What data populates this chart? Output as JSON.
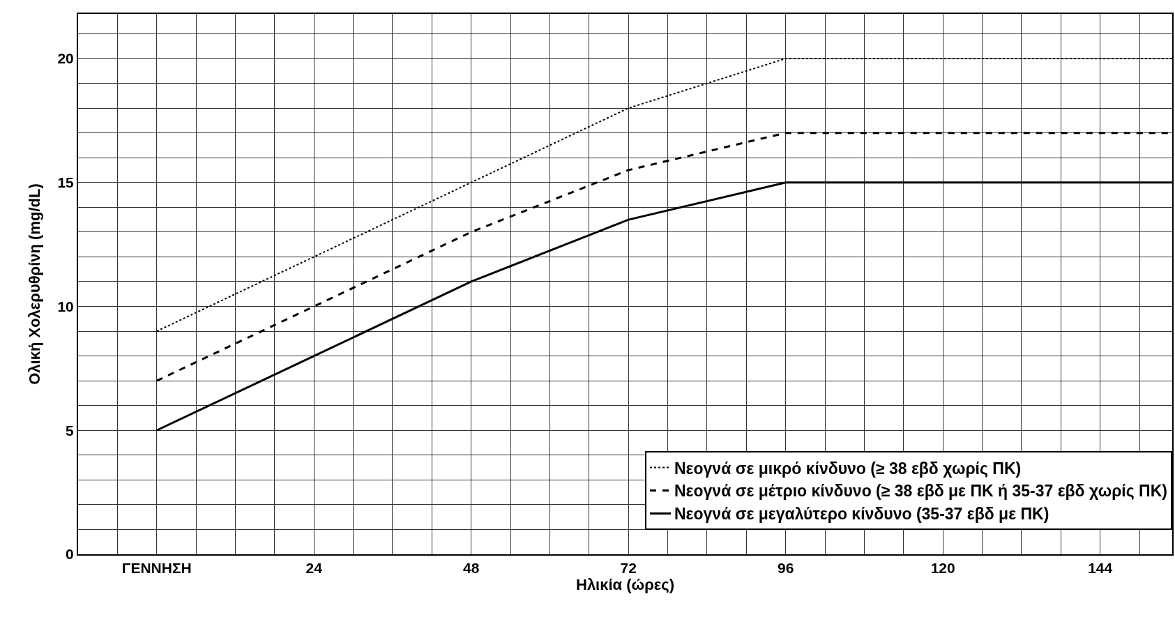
{
  "chart_data": {
    "type": "line",
    "xlabel": "Ηλικία (ώρες)",
    "ylabel": "Ολική Χολερυθρίνη (mg/dL)",
    "x": [
      0,
      24,
      48,
      72,
      96,
      155
    ],
    "series": [
      {
        "name": "Νεογνά σε μικρό κίνδυνο (≥ 38 εβδ χωρίς ΠΚ)",
        "color": "#000000",
        "line_style": "dotted",
        "values": [
          9,
          12,
          15,
          18,
          20,
          20
        ]
      },
      {
        "name": "Νεογνά σε μέτριο κίνδυνο (≥ 38 εβδ με ΠΚ ή 35-37 εβδ χωρίς ΠΚ)",
        "color": "#000000",
        "line_style": "dashed",
        "values": [
          7,
          10,
          13,
          15.5,
          17,
          17
        ]
      },
      {
        "name": "Νεογνά σε μεγαλύτερο κίνδυνο (35-37 εβδ με ΠΚ)",
        "color": "#000000",
        "line_style": "solid",
        "values": [
          5,
          8,
          11,
          13.5,
          15,
          15
        ]
      }
    ],
    "xlim": [
      -12,
      155
    ],
    "xticks": [
      {
        "value": -6,
        "label": null
      },
      {
        "value": 0,
        "label": "ΓΕΝΝΗΣΗ"
      },
      {
        "value": 6,
        "label": null
      },
      {
        "value": 12,
        "label": null
      },
      {
        "value": 18,
        "label": null
      },
      24,
      {
        "value": 30,
        "label": null
      },
      {
        "value": 36,
        "label": null
      },
      {
        "value": 42,
        "label": null
      },
      48,
      {
        "value": 54,
        "label": null
      },
      {
        "value": 60,
        "label": null
      },
      {
        "value": 66,
        "label": null
      },
      72,
      {
        "value": 78,
        "label": null
      },
      {
        "value": 84,
        "label": null
      },
      {
        "value": 90,
        "label": null
      },
      96,
      {
        "value": 102,
        "label": null
      },
      {
        "value": 108,
        "label": null
      },
      {
        "value": 114,
        "label": null
      },
      120,
      {
        "value": 126,
        "label": null
      },
      {
        "value": 132,
        "label": null
      },
      {
        "value": 138,
        "label": null
      },
      144,
      {
        "value": 150,
        "label": null
      }
    ],
    "ylim": [
      0,
      21.8
    ],
    "yticks": [
      0,
      {
        "value": 1,
        "label": null
      },
      {
        "value": 2,
        "label": null
      },
      {
        "value": 3,
        "label": null
      },
      {
        "value": 4,
        "label": null
      },
      5,
      {
        "value": 6,
        "label": null
      },
      {
        "value": 7,
        "label": null
      },
      {
        "value": 8,
        "label": null
      },
      {
        "value": 9,
        "label": null
      },
      10,
      {
        "value": 11,
        "label": null
      },
      {
        "value": 12,
        "label": null
      },
      {
        "value": 13,
        "label": null
      },
      {
        "value": 14,
        "label": null
      },
      15,
      {
        "value": 16,
        "label": null
      },
      {
        "value": 17,
        "label": null
      },
      {
        "value": 18,
        "label": null
      },
      {
        "value": 19,
        "label": null
      },
      20,
      {
        "value": 21,
        "label": null
      }
    ],
    "grid": true,
    "legend": "bottom right"
  }
}
